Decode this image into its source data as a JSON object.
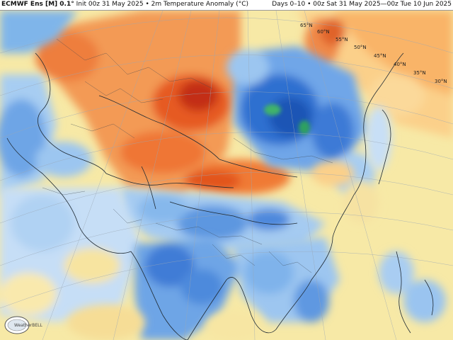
{
  "header": {
    "model": "ECMWF Ens [M] 0.1°",
    "init": "Init 00z 31 May 2025",
    "field": "2m Temperature Anomaly (°C)",
    "valid": "Days 0–10 • 00z Sat 31 May 2025—00z Tue 10 Jun 2025"
  },
  "latitude_labels": [
    "65°N",
    "60°N",
    "55°N",
    "50°N",
    "45°N",
    "40°N",
    "35°N",
    "30°N"
  ],
  "logo": {
    "text": "WeatherBELL"
  },
  "colors": {
    "ocean_neutral": "#f7e9a6",
    "warm": "#f2823e",
    "hot": "#d23a12",
    "cool": "#8cbef0",
    "cold": "#2f6fd0",
    "land_light": "#d8e8f8"
  }
}
